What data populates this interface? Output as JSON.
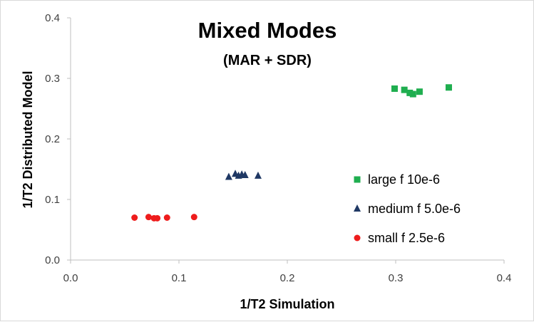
{
  "chart_data": {
    "type": "scatter",
    "title": "Mixed Modes",
    "subtitle": "(MAR + SDR)",
    "xlabel": "1/T2 Simulation",
    "ylabel": "1/T2 Distributed Model",
    "xlim": [
      0.0,
      0.4
    ],
    "ylim": [
      0.0,
      0.4
    ],
    "xticks": [
      "0.0",
      "0.1",
      "0.2",
      "0.3",
      "0.4"
    ],
    "yticks": [
      "0.0",
      "0.1",
      "0.2",
      "0.3",
      "0.4"
    ],
    "grid": false,
    "legend_position": "center-right",
    "series": [
      {
        "name": "large f 10e-6",
        "marker": "square",
        "color": "#1fae4f",
        "points": [
          [
            0.299,
            0.283
          ],
          [
            0.308,
            0.281
          ],
          [
            0.313,
            0.276
          ],
          [
            0.316,
            0.274
          ],
          [
            0.322,
            0.278
          ],
          [
            0.349,
            0.285
          ]
        ]
      },
      {
        "name": "medium f 5.0e-6",
        "marker": "triangle",
        "color": "#1f3864",
        "points": [
          [
            0.146,
            0.137
          ],
          [
            0.152,
            0.142
          ],
          [
            0.155,
            0.139
          ],
          [
            0.158,
            0.141
          ],
          [
            0.161,
            0.14
          ],
          [
            0.173,
            0.139
          ]
        ]
      },
      {
        "name": "small f 2.5e-6",
        "marker": "circle",
        "color": "#ee1c1c",
        "points": [
          [
            0.059,
            0.07
          ],
          [
            0.072,
            0.071
          ],
          [
            0.077,
            0.069
          ],
          [
            0.08,
            0.069
          ],
          [
            0.089,
            0.07
          ],
          [
            0.114,
            0.071
          ]
        ]
      }
    ]
  }
}
